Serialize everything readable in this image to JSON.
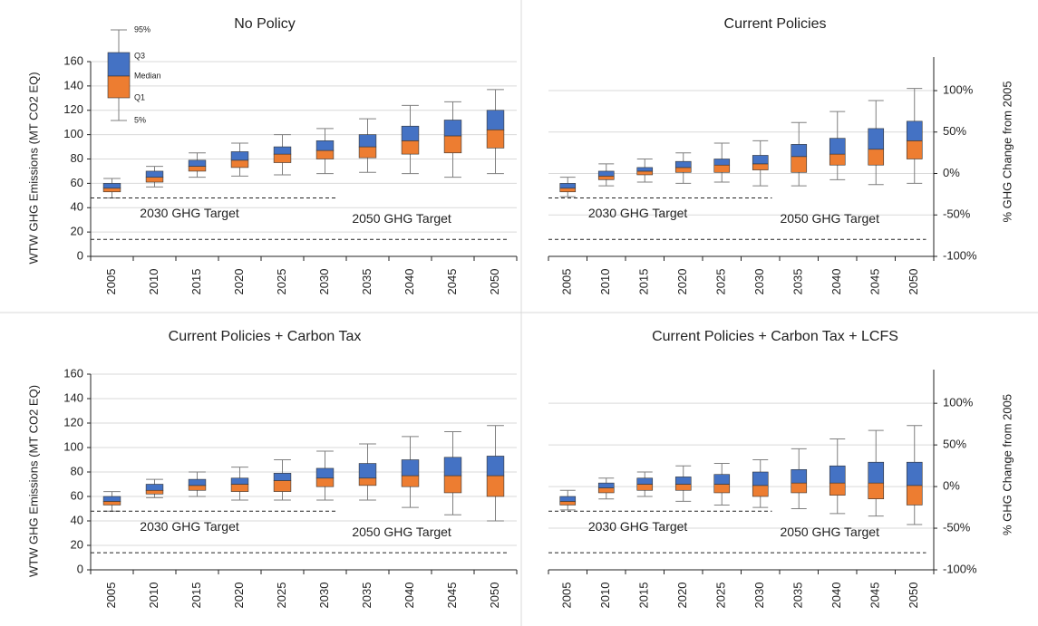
{
  "chart_data": [
    {
      "type": "box",
      "title": "No Policy",
      "y_label": "WTW GHG Emissions (MT CO2 EQ)",
      "categories": [
        "2005",
        "2010",
        "2015",
        "2020",
        "2025",
        "2030",
        "2035",
        "2040",
        "2045",
        "2050"
      ],
      "p5": [
        48,
        57,
        65,
        66,
        67,
        68,
        69,
        68,
        65,
        68
      ],
      "q1": [
        53,
        61,
        70,
        73,
        77,
        80,
        81,
        84,
        85,
        89
      ],
      "median": [
        56,
        65,
        74,
        79,
        84,
        87,
        90,
        95,
        99,
        104
      ],
      "q3": [
        60,
        70,
        79,
        86,
        90,
        95,
        100,
        107,
        112,
        120
      ],
      "p95": [
        64,
        74,
        85,
        93,
        100,
        105,
        113,
        124,
        127,
        137
      ],
      "upper_color": "#4472c4",
      "lower_color": "#ed7d31",
      "ylim": [
        0,
        160
      ],
      "yticks": [
        0,
        20,
        40,
        60,
        80,
        100,
        120,
        140,
        160
      ],
      "grid": true,
      "legend_labels": [
        "95%",
        "Q3",
        "Median",
        "Q1",
        "5%"
      ],
      "targets": [
        {
          "name": "2030 GHG Target",
          "x": [
            "2005",
            "2030"
          ],
          "values": [
            48,
            48
          ]
        },
        {
          "name": "2050 GHG Target",
          "x": [
            "2005",
            "2050"
          ],
          "values": [
            14,
            14
          ]
        }
      ]
    },
    {
      "type": "box",
      "title": "Current Policies",
      "y2_label": "% GHG Change from 2005",
      "categories": [
        "2005",
        "2010",
        "2015",
        "2020",
        "2025",
        "2030",
        "2035",
        "2040",
        "2045",
        "2050"
      ],
      "p5": [
        49,
        58,
        61,
        60,
        61,
        58,
        58,
        63,
        59,
        60
      ],
      "q1": [
        53,
        63,
        67,
        69,
        69,
        71,
        69,
        75,
        75,
        80
      ],
      "median": [
        56,
        66,
        70,
        73,
        75,
        76,
        82,
        84,
        88,
        95
      ],
      "q3": [
        60,
        70,
        73,
        78,
        80,
        83,
        92,
        97,
        105,
        111
      ],
      "p95": [
        65,
        76,
        80,
        85,
        93,
        95,
        110,
        119,
        128,
        138
      ],
      "upper_color": "#4472c4",
      "lower_color": "#ed7d31",
      "ylim": [
        0,
        160
      ],
      "y2lim": [
        -100,
        135
      ],
      "y2ticks": [
        {
          "value": -100,
          "label": "-100%"
        },
        {
          "value": -50,
          "label": "-50%"
        },
        {
          "value": 0,
          "label": "0%"
        },
        {
          "value": 50,
          "label": "50%"
        },
        {
          "value": 100,
          "label": "100%"
        }
      ],
      "grid": true,
      "targets": [
        {
          "name": "2030 GHG Target",
          "x": [
            "2005",
            "2030"
          ],
          "values": [
            48,
            48
          ]
        },
        {
          "name": "2050 GHG Target",
          "x": [
            "2005",
            "2050"
          ],
          "values": [
            14,
            14
          ]
        }
      ]
    },
    {
      "type": "box",
      "title": "Current Policies + Carbon Tax",
      "y_label": "WTW GHG Emissions (MT CO2 EQ)",
      "categories": [
        "2005",
        "2010",
        "2015",
        "2020",
        "2025",
        "2030",
        "2035",
        "2040",
        "2045",
        "2050"
      ],
      "p5": [
        48,
        59,
        60,
        57,
        57,
        57,
        57,
        51,
        45,
        40
      ],
      "q1": [
        53,
        62,
        65,
        64,
        64,
        68,
        69,
        68,
        63,
        60
      ],
      "median": [
        56,
        65,
        69,
        70,
        73,
        75,
        75,
        77,
        77,
        77
      ],
      "q3": [
        60,
        70,
        74,
        75,
        79,
        83,
        87,
        90,
        92,
        93
      ],
      "p95": [
        64,
        74,
        80,
        84,
        90,
        97,
        103,
        109,
        113,
        118
      ],
      "upper_color": "#4472c4",
      "lower_color": "#ed7d31",
      "ylim": [
        0,
        160
      ],
      "yticks": [
        0,
        20,
        40,
        60,
        80,
        100,
        120,
        140,
        160
      ],
      "grid": true,
      "targets": [
        {
          "name": "2030 GHG Target",
          "x": [
            "2005",
            "2030"
          ],
          "values": [
            48,
            48
          ]
        },
        {
          "name": "2050 GHG Target",
          "x": [
            "2005",
            "2050"
          ],
          "values": [
            14,
            14
          ]
        }
      ]
    },
    {
      "type": "box",
      "title": "Current Policies + Carbon Tax + LCFS",
      "y2_label": "% GHG Change from 2005",
      "categories": [
        "2005",
        "2010",
        "2015",
        "2020",
        "2025",
        "2030",
        "2035",
        "2040",
        "2045",
        "2050"
      ],
      "p5": [
        49,
        58,
        60,
        56,
        53,
        51,
        50,
        46,
        44,
        37
      ],
      "q1": [
        53,
        63,
        65,
        65,
        63,
        60,
        63,
        61,
        58,
        53
      ],
      "median": [
        56,
        67,
        70,
        70,
        70,
        69,
        71,
        71,
        71,
        69
      ],
      "q3": [
        60,
        71,
        75,
        76,
        78,
        80,
        82,
        85,
        88,
        88
      ],
      "p95": [
        65,
        75,
        80,
        85,
        87,
        90,
        99,
        107,
        114,
        118
      ],
      "upper_color": "#4472c4",
      "lower_color": "#ed7d31",
      "ylim": [
        0,
        160
      ],
      "y2lim": [
        -100,
        135
      ],
      "y2ticks": [
        {
          "value": -100,
          "label": "-100%"
        },
        {
          "value": -50,
          "label": "-50%"
        },
        {
          "value": 0,
          "label": "0%"
        },
        {
          "value": 50,
          "label": "50%"
        },
        {
          "value": 100,
          "label": "100%"
        }
      ],
      "grid": true,
      "targets": [
        {
          "name": "2030 GHG Target",
          "x": [
            "2005",
            "2030"
          ],
          "values": [
            48,
            48
          ]
        },
        {
          "name": "2050 GHG Target",
          "x": [
            "2005",
            "2050"
          ],
          "values": [
            14,
            14
          ]
        }
      ]
    }
  ]
}
